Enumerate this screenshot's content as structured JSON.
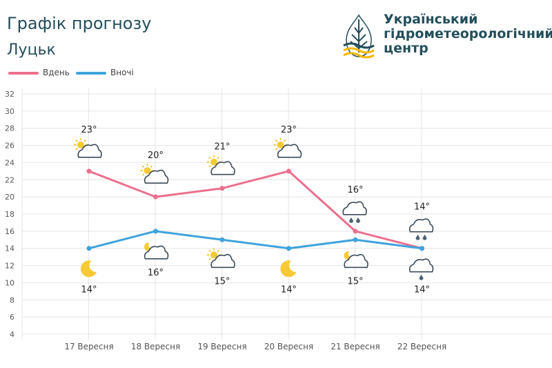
{
  "header": {
    "title": "Графік прогнозу",
    "city": "Луцьк"
  },
  "brand": {
    "line1": "Український",
    "line2": "гідрометеорологічний",
    "line3": "центр",
    "logo_icon": "ukrhydrometcenter-logo-icon"
  },
  "legend": [
    {
      "label": "Вдень",
      "color": "#ec6f8c"
    },
    {
      "label": "Вночі",
      "color": "#3fa2de"
    }
  ],
  "chart_data": {
    "type": "line",
    "categories": [
      "17 Вересня",
      "18 Вересня",
      "19 Вересня",
      "20 Вересня",
      "21 Вересня",
      "22 Вересня"
    ],
    "ylim": [
      4,
      32
    ],
    "yticks": [
      4,
      6,
      8,
      10,
      12,
      14,
      16,
      18,
      20,
      22,
      24,
      26,
      28,
      30,
      32
    ],
    "grid": true,
    "legend_position": "top-left",
    "series": [
      {
        "name": "Вдень",
        "color": "#ec6f8c",
        "values": [
          23,
          20,
          21,
          23,
          16,
          14
        ],
        "labels": [
          "23°",
          "20°",
          "21°",
          "23°",
          "16°",
          "14°"
        ],
        "icons": [
          "partly-cloudy-icon",
          "partly-cloudy-icon",
          "partly-cloudy-icon",
          "partly-cloudy-icon",
          "rain-cloud-icon",
          "rain-cloud-icon"
        ]
      },
      {
        "name": "Вночі",
        "color": "#3fa2de",
        "values": [
          14,
          16,
          15,
          14,
          15,
          14
        ],
        "labels": [
          "14°",
          "16°",
          "15°",
          "14°",
          "15°",
          "14°"
        ],
        "icons": [
          "moon-icon",
          "partly-cloudy-night-icon",
          "partly-cloudy-icon",
          "moon-icon",
          "partly-cloudy-night-icon",
          "light-rain-cloud-icon"
        ]
      }
    ]
  }
}
